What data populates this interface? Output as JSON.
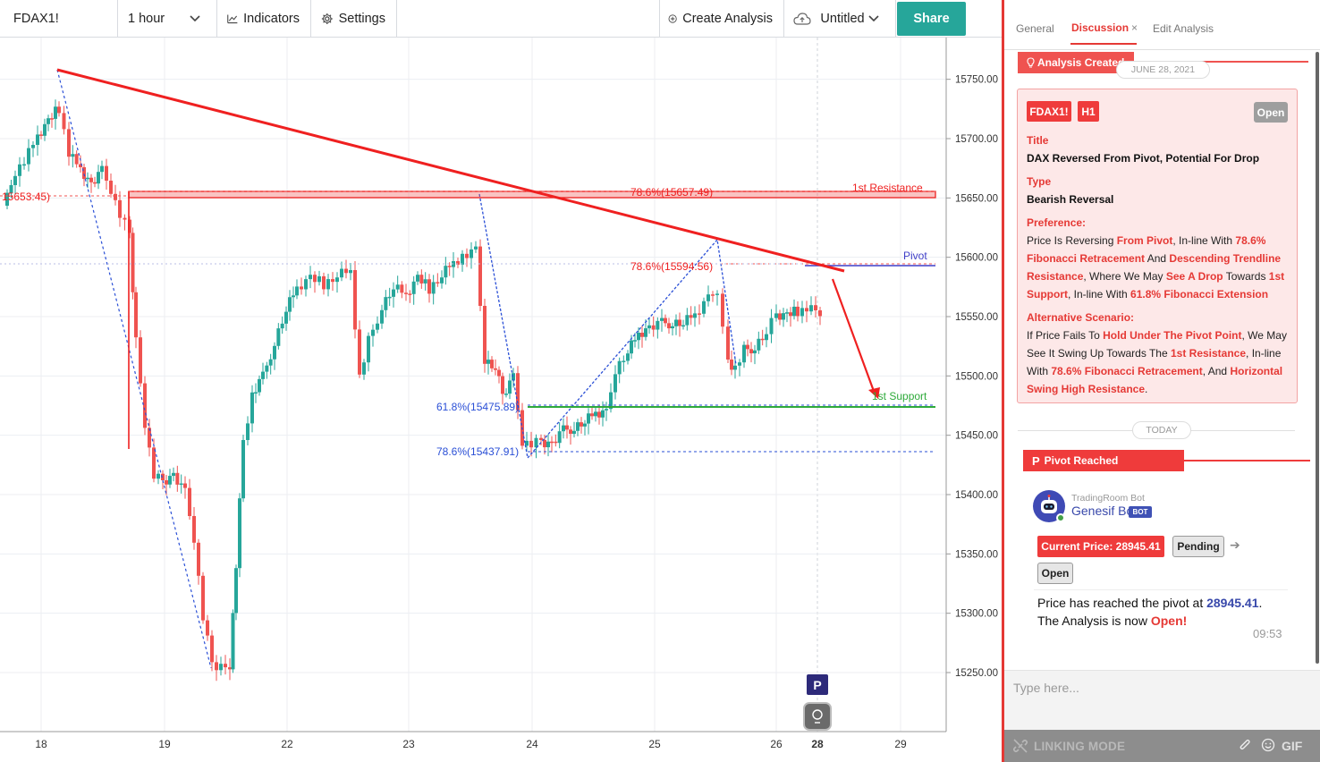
{
  "toolbar": {
    "symbol": "FDAX1!",
    "interval": "1 hour",
    "indicators": "Indicators",
    "settings": "Settings",
    "create_analysis": "Create Analysis",
    "layout_name": "Untitled",
    "share": "Share"
  },
  "chart": {
    "instrument": "FDAX1!",
    "timeframe": "1 hour",
    "y_axis": {
      "min": 15200,
      "max": 15770,
      "ticks": [
        "15750.00",
        "15700.00",
        "15650.00",
        "15600.00",
        "15550.00",
        "15500.00",
        "15450.00",
        "15400.00",
        "15350.00",
        "15300.00",
        "15250.00"
      ]
    },
    "x_axis": {
      "labels": [
        "18",
        "19",
        "22",
        "23",
        "24",
        "25",
        "26",
        "28",
        "29"
      ],
      "highlight": "28"
    },
    "drawings": {
      "left_price_label": "15653.45)",
      "fib_high": "78.6%(15657.49)",
      "fib_mid": "78.6%(15594.56)",
      "fib_618": "61.8%(15475.89)",
      "fib_786_low": "78.6%(15437.91)",
      "resistance_label": "1st Resistance",
      "pivot_label": "Pivot",
      "support_label": "1st Support",
      "pivot_marker": "P"
    },
    "colors": {
      "up": "#26a69a",
      "down": "#ef5350",
      "trend": "#ef2020",
      "pivot": "#3f3fc8",
      "support": "#2eaa3a",
      "fib": "#2a4fd6"
    }
  },
  "panel": {
    "tabs": {
      "general": "General",
      "discussion": "Discussion",
      "close": "×",
      "edit": "Edit Analysis"
    },
    "analysis_banner": "Analysis Created",
    "analysis_date": "JUNE 28, 2021",
    "card": {
      "symbol": "FDAX1!",
      "timeframe": "H1",
      "status": "Open",
      "title_label": "Title",
      "title": "DAX Reversed From Pivot, Potential For Drop",
      "type_label": "Type",
      "type": "Bearish Reversal",
      "preference_label": "Preference:",
      "preference": [
        {
          "t": "Price Is Reversing ",
          "h": false
        },
        {
          "t": "From Pivot",
          "h": true
        },
        {
          "t": ", In-line With ",
          "h": false
        },
        {
          "t": "78.6% Fibonacci Retracement",
          "h": true
        },
        {
          "t": " And ",
          "h": false
        },
        {
          "t": "Descending Trendline Resistance",
          "h": true
        },
        {
          "t": ", Where We May ",
          "h": false
        },
        {
          "t": "See A Drop",
          "h": true
        },
        {
          "t": " Towards ",
          "h": false
        },
        {
          "t": "1st Support",
          "h": true
        },
        {
          "t": ", In-line With ",
          "h": false
        },
        {
          "t": "61.8% Fibonacci Extension",
          "h": true
        }
      ],
      "alternative_label": "Alternative Scenario:",
      "alternative": [
        {
          "t": "If Price Fails To ",
          "h": false
        },
        {
          "t": "Hold Under The Pivot Point",
          "h": true
        },
        {
          "t": ", We May See It Swing Up Towards The ",
          "h": false
        },
        {
          "t": "1st Resistance",
          "h": true
        },
        {
          "t": ", In-line With ",
          "h": false
        },
        {
          "t": "78.6% Fibonacci Retracement",
          "h": true
        },
        {
          "t": ", And ",
          "h": false
        },
        {
          "t": "Horizontal Swing High Resistance",
          "h": true
        },
        {
          "t": ".",
          "h": false
        }
      ]
    },
    "today": "TODAY",
    "pivot_banner": "Pivot Reached",
    "bot": {
      "source": "TradingRoom Bot",
      "name": "Genesif Bot",
      "badge": "BOT",
      "current_price": "Current Price: 28945.41",
      "pending": "Pending",
      "open": "Open",
      "message_a": "Price has reached the pivot at ",
      "message_price": "28945.41",
      "message_b": ".",
      "message_c": "The Analysis is now ",
      "message_open": "Open!",
      "time": "09:53"
    },
    "input_placeholder": "Type here...",
    "linking_mode": "LINKING MODE",
    "gif": "GIF"
  }
}
